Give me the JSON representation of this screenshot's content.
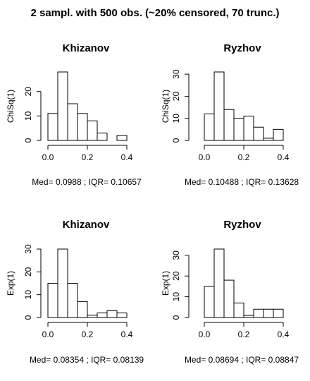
{
  "title": "2 sampl. with 500 obs. (~20% censored, 70 trunc.)",
  "chart_data": [
    {
      "type": "bar",
      "title": "Khizanov",
      "ylabel": "ChiSq(1)",
      "xlabel": "Med= 0.0988 ; IQR= 0.10657",
      "bin_edges": [
        0.0,
        0.05,
        0.1,
        0.15,
        0.2,
        0.25,
        0.3,
        0.35,
        0.4
      ],
      "values": [
        11,
        28,
        15,
        11,
        8,
        3,
        0,
        2
      ],
      "xlim": [
        0.0,
        0.4
      ],
      "ylim": [
        0,
        28
      ],
      "xticks": [
        0.0,
        0.2,
        0.4
      ],
      "yticks": [
        0,
        10,
        20
      ],
      "xtick_labels": [
        "0.0",
        "0.2",
        "0.4"
      ],
      "ytick_labels": [
        "0",
        "10",
        "20"
      ]
    },
    {
      "type": "bar",
      "title": "Ryzhov",
      "ylabel": "ChiSq(1)",
      "xlabel": "Med= 0.10488 ; IQR= 0.13628",
      "bin_edges": [
        0.0,
        0.05,
        0.1,
        0.15,
        0.2,
        0.25,
        0.3,
        0.35,
        0.4
      ],
      "values": [
        12,
        31,
        14,
        10,
        11,
        6,
        1,
        5
      ],
      "xlim": [
        0.0,
        0.4
      ],
      "ylim": [
        0,
        31
      ],
      "xticks": [
        0.0,
        0.2,
        0.4
      ],
      "yticks": [
        0,
        10,
        20,
        30
      ],
      "xtick_labels": [
        "0.0",
        "0.2",
        "0.4"
      ],
      "ytick_labels": [
        "0",
        "10",
        "20",
        "30"
      ]
    },
    {
      "type": "bar",
      "title": "Khizanov",
      "ylabel": "Exp(1)",
      "xlabel": "Med= 0.08354 ; IQR= 0.08139",
      "bin_edges": [
        0.0,
        0.05,
        0.1,
        0.15,
        0.2,
        0.25,
        0.3,
        0.35,
        0.4
      ],
      "values": [
        15,
        30,
        15,
        7,
        1,
        2,
        3,
        2
      ],
      "xlim": [
        0.0,
        0.4
      ],
      "ylim": [
        0,
        30
      ],
      "xticks": [
        0.0,
        0.2,
        0.4
      ],
      "yticks": [
        0,
        10,
        20,
        30
      ],
      "xtick_labels": [
        "0.0",
        "0.2",
        "0.4"
      ],
      "ytick_labels": [
        "0",
        "10",
        "20",
        "30"
      ]
    },
    {
      "type": "bar",
      "title": "Ryzhov",
      "ylabel": "Exp(1)",
      "xlabel": "Med= 0.08694 ; IQR= 0.08847",
      "bin_edges": [
        0.0,
        0.05,
        0.1,
        0.15,
        0.2,
        0.25,
        0.3,
        0.35,
        0.4
      ],
      "values": [
        15,
        33,
        18,
        7,
        1,
        4,
        4,
        4
      ],
      "xlim": [
        0.0,
        0.4
      ],
      "ylim": [
        0,
        33
      ],
      "xticks": [
        0.0,
        0.2,
        0.4
      ],
      "yticks": [
        0,
        10,
        20,
        30
      ],
      "xtick_labels": [
        "0.0",
        "0.2",
        "0.4"
      ],
      "ytick_labels": [
        "0",
        "10",
        "20",
        "30"
      ]
    }
  ]
}
